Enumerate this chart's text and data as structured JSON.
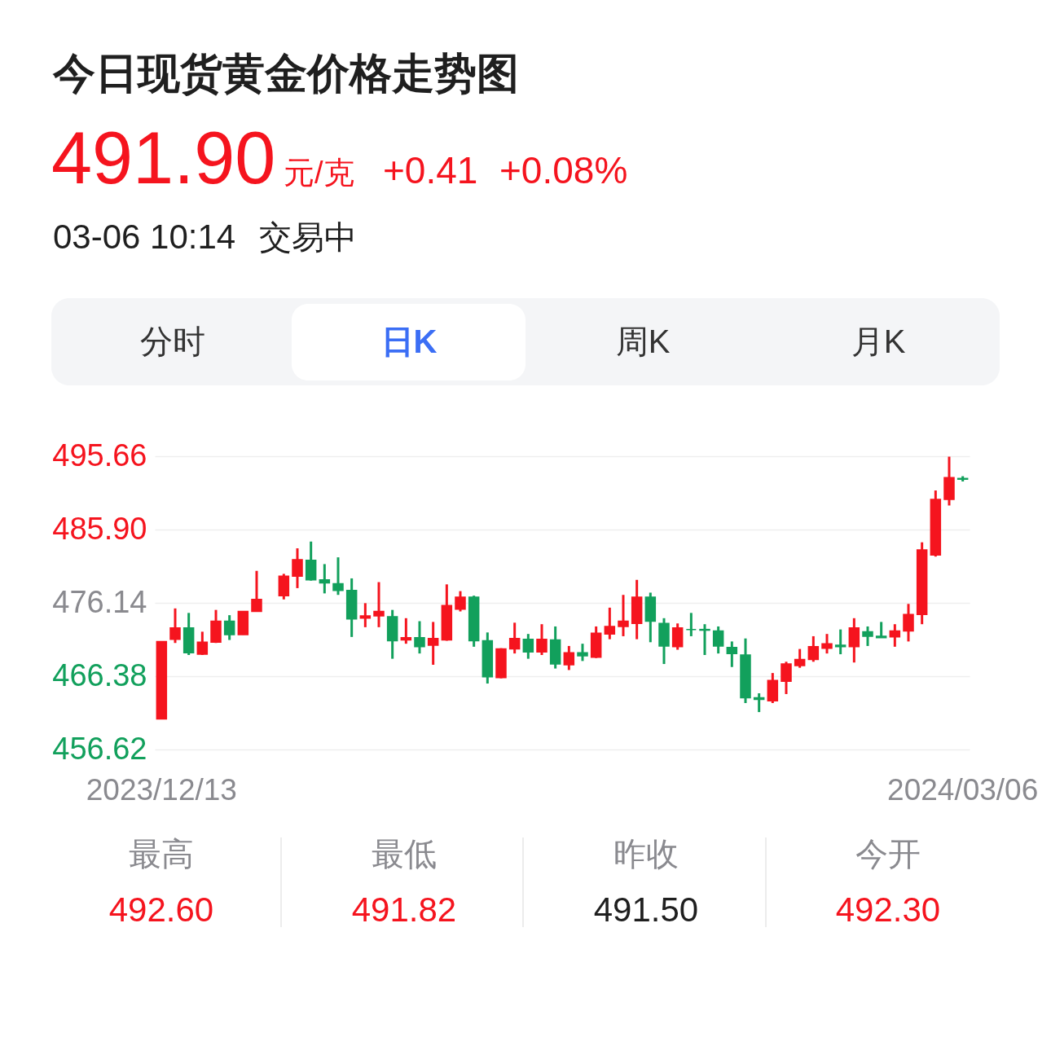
{
  "chart_data": {
    "type": "candlestick",
    "title": "今日现货黄金价格走势图",
    "annotations": [
      "491.90",
      "元/克",
      "+0.41",
      "+0.08%",
      "03-06 10:14",
      "交易中",
      "分时",
      "日K",
      "周K",
      "月K",
      "最高",
      "492.60",
      "最低",
      "491.82",
      "昨收",
      "491.50",
      "今开",
      "492.30"
    ],
    "categories": [
      "2023/12/13",
      null,
      null,
      null,
      null,
      null,
      null,
      null,
      null,
      null,
      null,
      null,
      null,
      null,
      null,
      null,
      null,
      null,
      null,
      null,
      null,
      null,
      null,
      null,
      null,
      null,
      null,
      null,
      null,
      null,
      null,
      null,
      null,
      null,
      null,
      null,
      null,
      null,
      null,
      null,
      null,
      null,
      null,
      null,
      null,
      null,
      null,
      null,
      null,
      null,
      null,
      null,
      null,
      null,
      null,
      null,
      null,
      null,
      null,
      "2024/03/06"
    ],
    "ohlc": [
      [
        460.7,
        471.0,
        460.7,
        471.0
      ],
      [
        471.3,
        475.4,
        470.8,
        472.8
      ],
      [
        472.8,
        474.8,
        469.2,
        469.5
      ],
      [
        469.3,
        472.3,
        469.2,
        470.9
      ],
      [
        470.9,
        475.2,
        470.8,
        473.7
      ],
      [
        473.7,
        474.5,
        471.2,
        471.9
      ],
      [
        471.9,
        475.0,
        471.9,
        475.0
      ],
      [
        475.0,
        480.4,
        475.0,
        476.6
      ],
      null,
      [
        477.1,
        480.0,
        476.6,
        479.7
      ],
      [
        479.7,
        483.4,
        478.1,
        481.9
      ],
      [
        481.8,
        484.3,
        479.1,
        479.2
      ],
      [
        479.2,
        481.3,
        477.4,
        478.8
      ],
      [
        478.7,
        482.2,
        477.2,
        477.8
      ],
      [
        477.8,
        479.4,
        471.6,
        474.0
      ],
      [
        474.1,
        476.1,
        472.9,
        474.4
      ],
      [
        474.4,
        478.9,
        472.9,
        475.0
      ],
      [
        474.3,
        475.2,
        468.7,
        471.1
      ],
      [
        471.2,
        474.1,
        470.7,
        471.5
      ],
      [
        471.5,
        473.7,
        469.4,
        470.3
      ],
      [
        470.5,
        473.6,
        467.9,
        471.4
      ],
      [
        471.2,
        478.6,
        471.1,
        475.8
      ],
      [
        475.3,
        477.7,
        475.0,
        476.9
      ],
      [
        476.9,
        477.1,
        470.3,
        471.1
      ],
      [
        471.1,
        472.2,
        465.4,
        466.3
      ],
      [
        466.2,
        470.1,
        466.1,
        470.0
      ],
      [
        470.0,
        473.5,
        469.4,
        471.4
      ],
      [
        471.3,
        472.0,
        468.7,
        469.6
      ],
      [
        469.6,
        473.3,
        469.2,
        471.3
      ],
      [
        471.2,
        473.0,
        467.4,
        468.0
      ],
      [
        467.9,
        470.4,
        467.2,
        469.5
      ],
      [
        469.5,
        470.7,
        468.4,
        469.1
      ],
      [
        468.9,
        473.0,
        468.8,
        472.1
      ],
      [
        472.0,
        475.5,
        471.3,
        473.0
      ],
      [
        473.0,
        477.2,
        471.7,
        473.7
      ],
      [
        473.4,
        479.2,
        471.3,
        476.9
      ],
      [
        476.9,
        477.5,
        470.9,
        473.7
      ],
      [
        473.4,
        474.1,
        468.0,
        470.4
      ],
      [
        470.3,
        473.4,
        469.9,
        472.8
      ],
      [
        472.6,
        474.8,
        471.7,
        472.6
      ],
      [
        472.6,
        473.3,
        469.2,
        472.5
      ],
      [
        472.4,
        473.0,
        469.4,
        470.4
      ],
      [
        470.2,
        471.0,
        467.6,
        469.4
      ],
      [
        469.2,
        471.4,
        462.8,
        463.5
      ],
      [
        463.5,
        464.1,
        461.6,
        463.3
      ],
      [
        463.1,
        466.8,
        462.8,
        465.8
      ],
      [
        465.7,
        468.3,
        464.0,
        468.0
      ],
      [
        467.8,
        470.0,
        467.5,
        468.6
      ],
      [
        468.6,
        471.7,
        468.3,
        470.3
      ],
      [
        470.1,
        472.0,
        469.4,
        470.7
      ],
      [
        470.5,
        472.6,
        469.3,
        470.3
      ],
      [
        470.3,
        474.1,
        468.2,
        472.8
      ],
      [
        472.3,
        473.0,
        470.4,
        471.7
      ],
      [
        471.7,
        473.6,
        471.5,
        471.5
      ],
      [
        471.6,
        473.3,
        470.3,
        472.4
      ],
      [
        472.4,
        476.0,
        471.0,
        474.6
      ],
      [
        474.6,
        484.2,
        473.3,
        483.2
      ],
      [
        482.5,
        491.1,
        482.3,
        489.9
      ],
      [
        489.9,
        495.6,
        489.1,
        492.8
      ],
      [
        492.7,
        493.0,
        492.3,
        492.6
      ]
    ],
    "colors": [
      "#f5141e",
      "#f5141e",
      "#12a05c",
      "#f5141e",
      "#f5141e",
      "#12a05c",
      "#f5141e",
      "#f5141e",
      null,
      "#f5141e",
      "#f5141e",
      "#12a05c",
      "#12a05c",
      "#12a05c",
      "#12a05c",
      "#f5141e",
      "#f5141e",
      "#12a05c",
      "#f5141e",
      "#12a05c",
      "#f5141e",
      "#f5141e",
      "#f5141e",
      "#12a05c",
      "#12a05c",
      "#f5141e",
      "#f5141e",
      "#12a05c",
      "#f5141e",
      "#12a05c",
      "#f5141e",
      "#12a05c",
      "#f5141e",
      "#f5141e",
      "#f5141e",
      "#f5141e",
      "#12a05c",
      "#12a05c",
      "#f5141e",
      "#12a05c",
      "#12a05c",
      "#12a05c",
      "#12a05c",
      "#12a05c",
      "#12a05c",
      "#f5141e",
      "#f5141e",
      "#f5141e",
      "#f5141e",
      "#f5141e",
      "#12a05c",
      "#f5141e",
      "#12a05c",
      "#12a05c",
      "#f5141e",
      "#f5141e",
      "#f5141e",
      "#f5141e",
      "#f5141e",
      "#12a05c"
    ],
    "ylim": [
      456.62,
      495.66
    ],
    "yticks": [
      456.62,
      466.38,
      476.14,
      {
        "value": 485.9,
        "label": "485.90"
      },
      495.66
    ],
    "grid": "y"
  }
}
